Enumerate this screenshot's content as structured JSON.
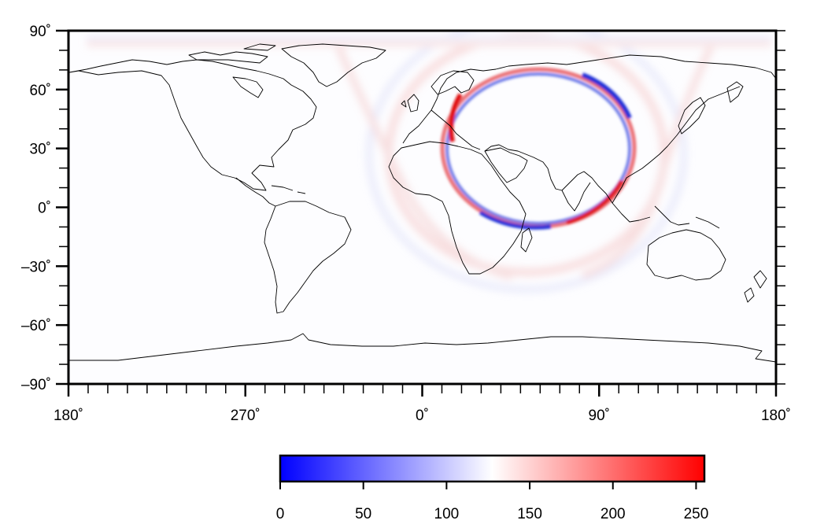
{
  "map": {
    "projection": "equirectangular",
    "lon_range": [
      180,
      540
    ],
    "lat_range": [
      -90,
      90
    ],
    "y_ticks": [
      {
        "value": 90,
        "label": "90˚"
      },
      {
        "value": 60,
        "label": "60˚"
      },
      {
        "value": 30,
        "label": "30˚"
      },
      {
        "value": 0,
        "label": "0˚"
      },
      {
        "value": -30,
        "label": "–30˚"
      },
      {
        "value": -60,
        "label": "–60˚"
      },
      {
        "value": -90,
        "label": "–90˚"
      }
    ],
    "x_ticks": [
      {
        "value": 180,
        "label": "180˚"
      },
      {
        "value": 270,
        "label": "270˚"
      },
      {
        "value": 360,
        "label": "0˚"
      },
      {
        "value": 450,
        "label": "90˚"
      },
      {
        "value": 540,
        "label": "180˚"
      }
    ],
    "wave_ring": {
      "center_lon": 57,
      "center_lat": 28,
      "radius_deg": 47
    },
    "colors": {
      "low": "#0000ff",
      "mid": "#ffffff",
      "high": "#ff0000",
      "coast": "#000000"
    }
  },
  "colorbar": {
    "range": [
      0,
      255
    ],
    "ticks": [
      {
        "value": 0,
        "label": "0"
      },
      {
        "value": 50,
        "label": "50"
      },
      {
        "value": 100,
        "label": "100"
      },
      {
        "value": 150,
        "label": "150"
      },
      {
        "value": 200,
        "label": "200"
      },
      {
        "value": 250,
        "label": "250"
      }
    ]
  }
}
